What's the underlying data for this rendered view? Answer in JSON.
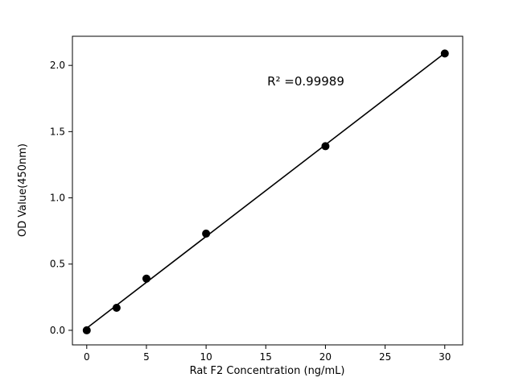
{
  "figure": {
    "background": "#ffffff"
  },
  "chart_data": {
    "type": "scatter",
    "x": [
      0,
      2.5,
      5,
      10,
      20,
      30
    ],
    "y": [
      0.0,
      0.17,
      0.39,
      0.73,
      1.39,
      2.09
    ],
    "title": "",
    "xlabel": "Rat F2 Concentration (ng/mL)",
    "ylabel": "OD Value(450nm)",
    "annotation": "R² =0.99989",
    "xticks": [
      0,
      5,
      10,
      15,
      20,
      25,
      30
    ],
    "yticks": [
      0.0,
      0.5,
      1.0,
      1.5,
      2.0
    ],
    "xlim": [
      -1.2,
      31.5
    ],
    "ylim": [
      -0.11,
      2.22
    ],
    "fit": "linear",
    "grid": false,
    "legend": "none",
    "marker_color": "#000000",
    "line_color": "#000000"
  }
}
